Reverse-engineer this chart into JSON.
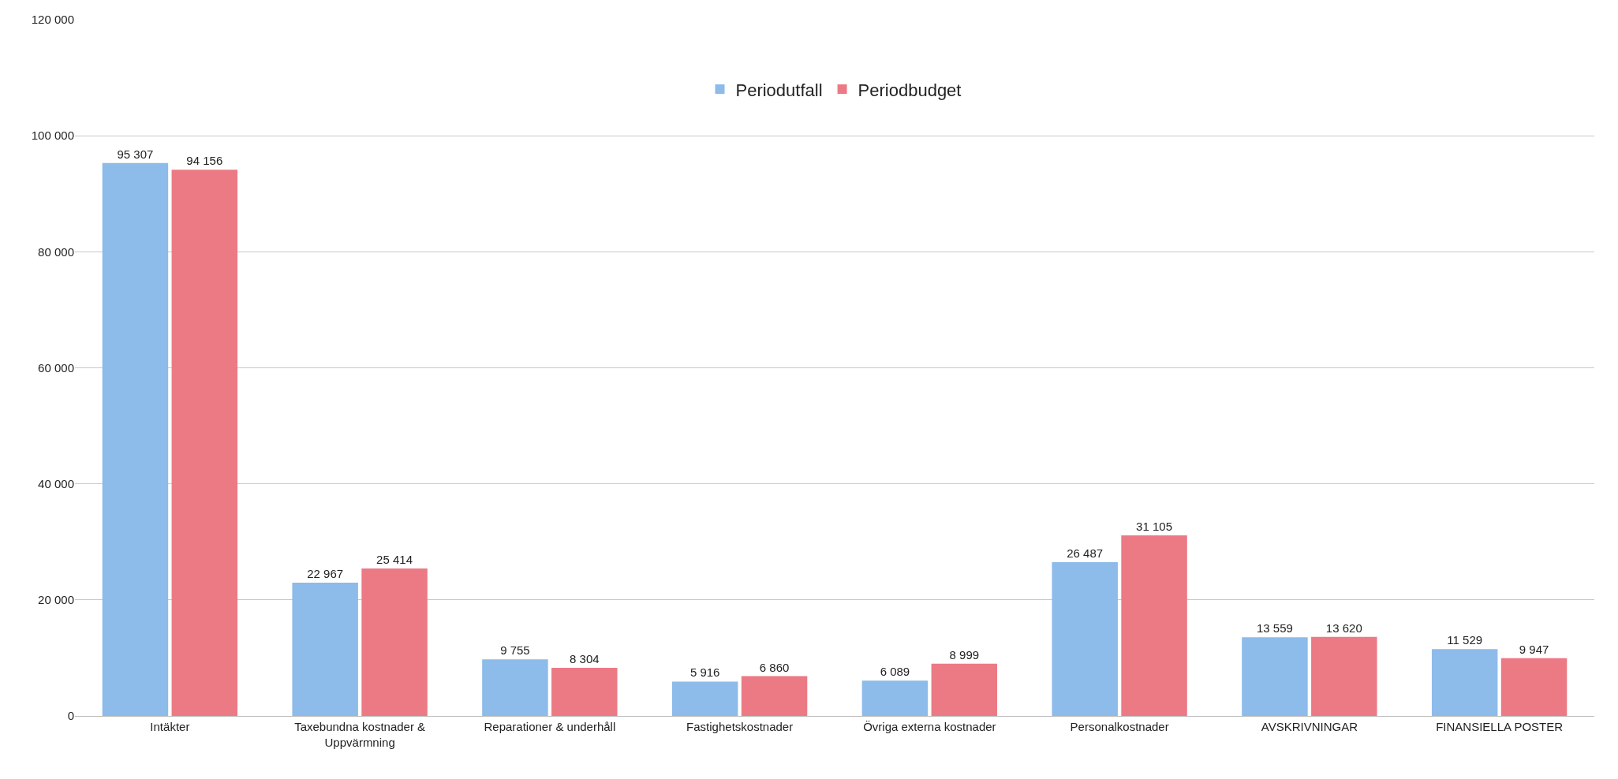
{
  "chart_data": {
    "type": "bar",
    "categories": [
      "Intäkter",
      "Taxebundna kostnader & Uppvärmning",
      "Reparationer & underhåll",
      "Fastighetskostnader",
      "Övriga externa kostnader",
      "Personalkostnader",
      "AVSKRIVNINGAR",
      "FINANSIELLA POSTER"
    ],
    "series": [
      {
        "name": "Periodutfall",
        "color": "#8dbbea",
        "values": [
          95307,
          22967,
          9755,
          5916,
          6089,
          26487,
          13559,
          11529
        ],
        "value_labels": [
          "95 307",
          "22 967",
          "9 755",
          "5 916",
          "6 089",
          "26 487",
          "13 559",
          "11 529"
        ]
      },
      {
        "name": "Periodbudget",
        "color": "#eb7a84",
        "values": [
          94156,
          25414,
          8304,
          6860,
          8999,
          31105,
          13620,
          9947
        ],
        "value_labels": [
          "94 156",
          "25 414",
          "8 304",
          "6 860",
          "8 999",
          "31 105",
          "13 620",
          "9 947"
        ]
      }
    ],
    "ylim": [
      0,
      120000
    ],
    "yticks": [
      {
        "value": 0,
        "label": "0"
      },
      {
        "value": 20000,
        "label": "20 000"
      },
      {
        "value": 40000,
        "label": "40 000"
      },
      {
        "value": 60000,
        "label": "60 000"
      },
      {
        "value": 80000,
        "label": "80 000"
      },
      {
        "value": 100000,
        "label": "100 000"
      },
      {
        "value": 120000,
        "label": "120 000"
      }
    ],
    "grid": "y",
    "legend": "top"
  }
}
